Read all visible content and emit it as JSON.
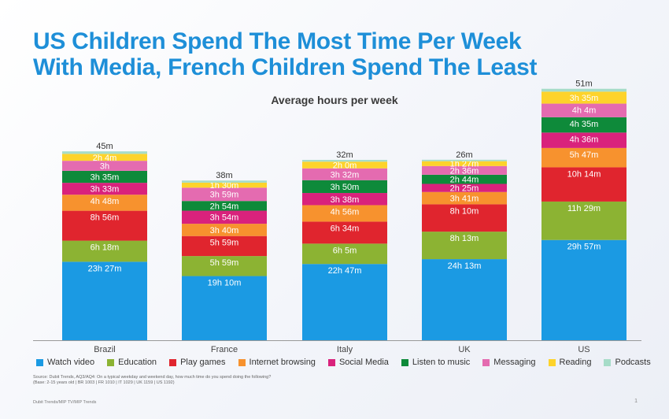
{
  "title_line1": "US Children Spend The Most Time Per Week",
  "title_line2": "With Media, French Children Spend The Least",
  "chart_data": {
    "type": "bar",
    "stacked": true,
    "title": "Average hours per week",
    "categories": [
      "Brazil",
      "France",
      "Italy",
      "UK",
      "US"
    ],
    "series": [
      {
        "name": "Watch video",
        "color": "#1b9ae3",
        "values": [
          23.45,
          19.17,
          22.78,
          24.22,
          29.95
        ],
        "labels": [
          "23h 27m",
          "19h 10m",
          "22h 47m",
          "24h 13m",
          "29h 57m"
        ]
      },
      {
        "name": "Education",
        "color": "#8cb333",
        "values": [
          6.3,
          5.98,
          6.08,
          8.22,
          11.48
        ],
        "labels": [
          "6h 18m",
          "5h 59m",
          "6h 5m",
          "8h 13m",
          "11h 29m"
        ]
      },
      {
        "name": "Play games",
        "color": "#e0252e",
        "values": [
          8.93,
          5.98,
          6.57,
          8.17,
          10.23
        ],
        "labels": [
          "8h 56m",
          "5h 59m",
          "6h 34m",
          "8h 10m",
          "10h 14m"
        ]
      },
      {
        "name": "Internet browsing",
        "color": "#f7922e",
        "values": [
          4.8,
          3.67,
          4.93,
          3.68,
          5.78
        ],
        "labels": [
          "4h 48m",
          "3h 40m",
          "4h 56m",
          "3h 41m",
          "5h 47m"
        ]
      },
      {
        "name": "Social Media",
        "color": "#d9227c",
        "values": [
          3.55,
          3.9,
          3.63,
          2.42,
          4.6
        ],
        "labels": [
          "3h 33m",
          "3h 54m",
          "3h 38m",
          "2h 25m",
          "4h 36m"
        ]
      },
      {
        "name": "Listen to music",
        "color": "#0e8a3a",
        "values": [
          3.58,
          2.9,
          3.83,
          2.73,
          4.58
        ],
        "labels": [
          "3h 35m",
          "2h 54m",
          "3h 50m",
          "2h 44m",
          "4h 35m"
        ]
      },
      {
        "name": "Messaging",
        "color": "#e46bb0",
        "values": [
          3.0,
          3.98,
          3.53,
          2.6,
          4.07
        ],
        "labels": [
          "3h",
          "3h 59m",
          "3h 32m",
          "2h 36m",
          "4h 4m"
        ]
      },
      {
        "name": "Reading",
        "color": "#fdd32b",
        "values": [
          2.07,
          1.5,
          2.0,
          1.45,
          3.58
        ],
        "labels": [
          "2h 4m",
          "1h 30m",
          "2h 0m",
          "1h 27m",
          "3h 35m"
        ]
      },
      {
        "name": "Podcasts",
        "color": "#a6dcc8",
        "values": [
          0.75,
          0.63,
          0.53,
          0.43,
          0.85
        ],
        "labels": [
          "45m",
          "38m",
          "32m",
          "26m",
          "51m"
        ]
      }
    ]
  },
  "source_line1": "Source: Dubit Trends, AQ3/AQ4: On a typical weekday and weekend day, how much time do you spend doing the following?",
  "source_line2": "(Base: 2-15 years old | BR 1003 | FR 1010 | IT 1029 | UK 1159 | US 1192)",
  "footer": "Dubit Trends/MIP TV/MIP Trends",
  "page_number": "1"
}
